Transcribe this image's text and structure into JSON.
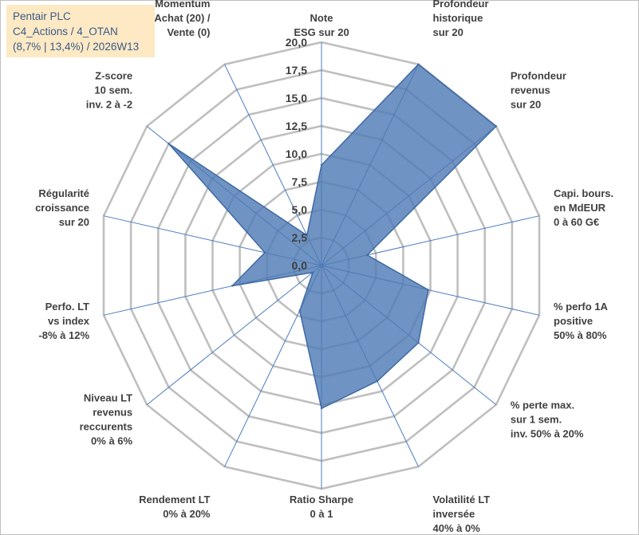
{
  "header": {
    "lines": [
      "Pentair PLC",
      "C4_Actions / 4_OTAN",
      "(8,7% | 13,4%) / 2026W13"
    ]
  },
  "colors": {
    "fill": "#4f7bb5",
    "edge": "#3f6aa5",
    "grid": "#bfbfbf",
    "spoke": "#4a7cc0",
    "box": "#fde9c4",
    "boxText": "#3a5a8a"
  },
  "chart_data": {
    "type": "radar",
    "rmax": 20,
    "ticks": [
      0,
      2.5,
      5,
      7.5,
      10,
      12.5,
      15,
      17.5,
      20
    ],
    "tick_labels": [
      "0,0",
      "2,5",
      "5,0",
      "7,5",
      "10,0",
      "12,5",
      "15,0",
      "17,5",
      "20,0"
    ],
    "axes": [
      [
        "Note",
        "ESG sur 20"
      ],
      [
        "Profondeur",
        "historique",
        "sur 20"
      ],
      [
        "Profondeur",
        "revenus",
        "sur 20"
      ],
      [
        "Capi. bours.",
        "en MdEUR",
        "0 à 60 G€"
      ],
      [
        "% perfo 1A",
        "positive",
        "50% à 80%"
      ],
      [
        "% perte max.",
        "sur 1 sem.",
        "inv. 50% à 20%"
      ],
      [
        "Volatilité LT",
        "inversée",
        "40% à 0%"
      ],
      [
        "Ratio Sharpe",
        "0 à 1"
      ],
      [
        "Rendement LT",
        "0% à 20%"
      ],
      [
        "Niveau LT",
        "revenus",
        "reccurents",
        "0% à 6%"
      ],
      [
        "Perfo. LT",
        "vs index",
        "-8% à 12%"
      ],
      [
        "Régularité",
        "croissance",
        "sur 20"
      ],
      [
        "Z-score",
        "10 sem.",
        "inv. 2 à -2"
      ],
      [
        "Momentum",
        "Achat (20) /",
        "Vente (0)"
      ]
    ],
    "values": [
      9.0,
      20.0,
      20.0,
      4.2,
      9.8,
      11.1,
      11.5,
      12.8,
      4.5,
      1.0,
      8.2,
      5.2,
      17.5,
      3.0
    ]
  }
}
